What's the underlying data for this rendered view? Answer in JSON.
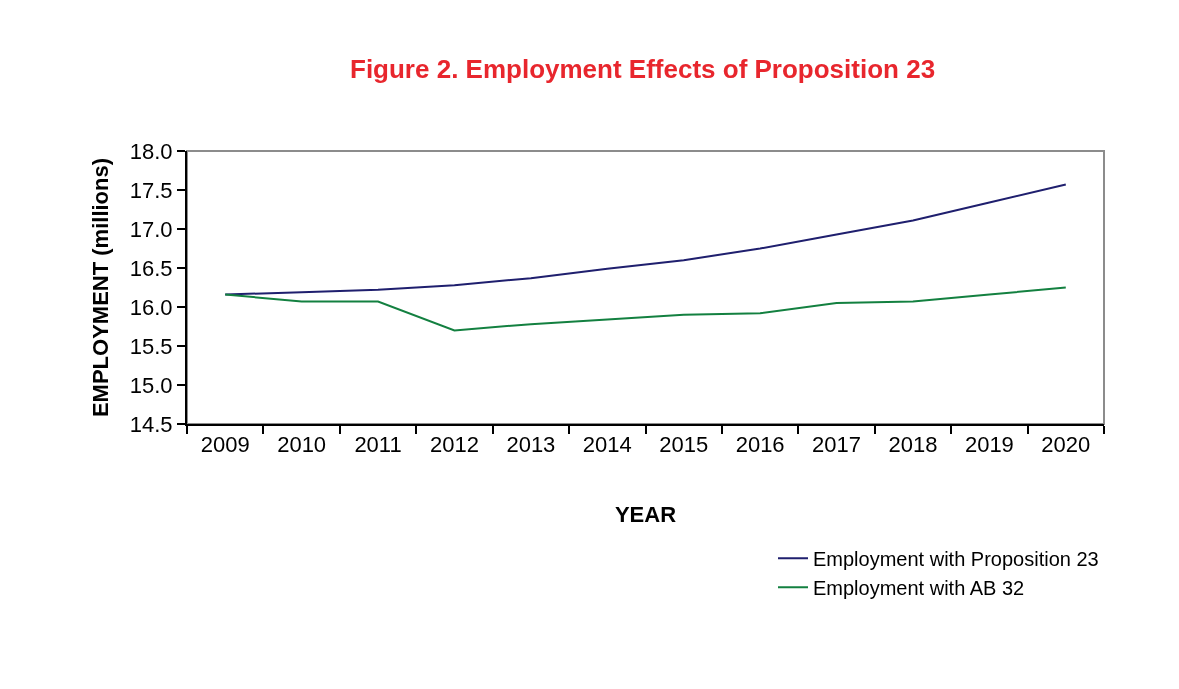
{
  "chart_data": {
    "type": "line",
    "title": "Figure 2. Employment Effects of Proposition 23",
    "xlabel": "YEAR",
    "ylabel": "EMPLOYMENT (millions)",
    "categories": [
      "2009",
      "2010",
      "2011",
      "2012",
      "2013",
      "2014",
      "2015",
      "2016",
      "2017",
      "2018",
      "2019",
      "2020"
    ],
    "series": [
      {
        "name": "Employment with Proposition 23",
        "color": "#1f1f6e",
        "values": [
          16.16,
          16.19,
          16.22,
          16.28,
          16.37,
          16.49,
          16.6,
          16.75,
          16.93,
          17.11,
          17.34,
          17.57
        ]
      },
      {
        "name": "Employment with AB 32",
        "color": "#138040",
        "values": [
          16.16,
          16.07,
          16.07,
          15.7,
          15.78,
          15.84,
          15.9,
          15.92,
          16.05,
          16.07,
          16.16,
          16.25
        ]
      }
    ],
    "ylim": [
      14.5,
      18.0
    ],
    "yticks": [
      {
        "value": 14.5,
        "label": "14.5"
      },
      {
        "value": 15.0,
        "label": "15.0"
      },
      {
        "value": 15.5,
        "label": "15.5"
      },
      {
        "value": 16.0,
        "label": "16.0"
      },
      {
        "value": 16.5,
        "label": "16.5"
      },
      {
        "value": 17.0,
        "label": "17.0"
      },
      {
        "value": 17.5,
        "label": "17.5"
      },
      {
        "value": 18.0,
        "label": "18.0"
      }
    ],
    "grid": false,
    "legend": "bottom right",
    "marker": "none",
    "line_style": "solid"
  }
}
